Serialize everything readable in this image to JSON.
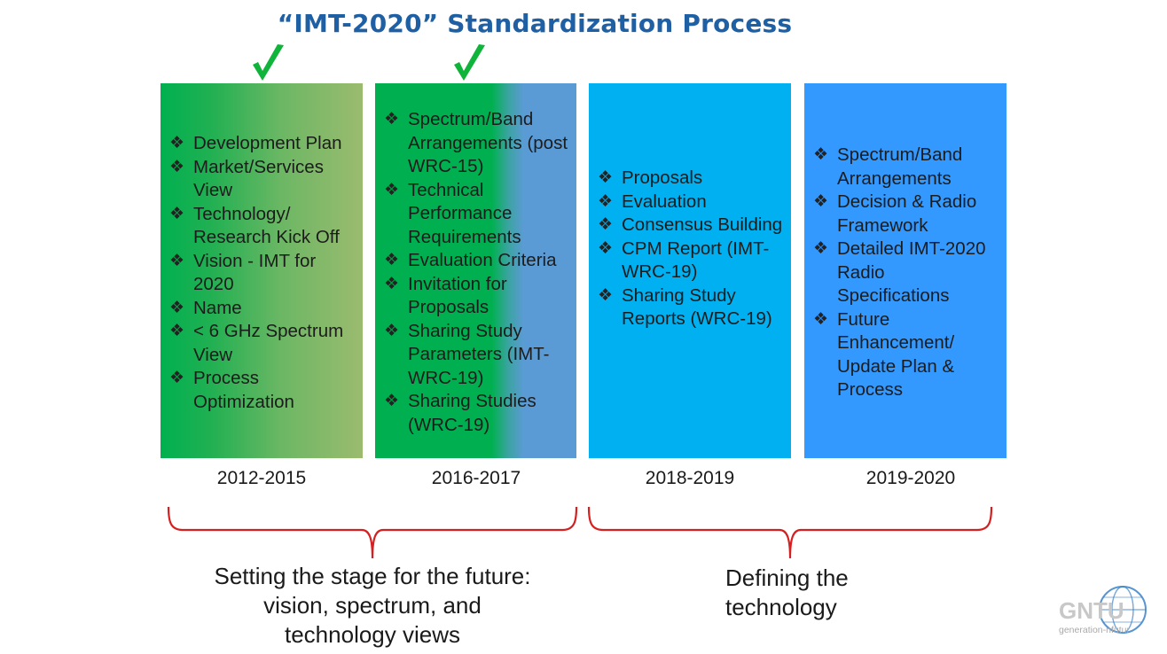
{
  "title": "“IMT-2020” Standardization Process",
  "colors": {
    "title": "#1f5fa3",
    "check": "#10b43a",
    "brace": "#d42020",
    "green": "#00b050",
    "olive": "#9bbb6f",
    "steel_blue": "#5b9bd5",
    "sky_blue": "#00b0f0",
    "blue": "#3399ff"
  },
  "bullet_glyph": "❖",
  "phases": [
    {
      "period": "2012-2015",
      "checked": true,
      "items": [
        "Development Plan",
        "Market/Services View",
        "Technology/ Research Kick Off",
        "Vision - IMT for 2020",
        "Name",
        "< 6 GHz Spectrum View",
        "Process Optimization"
      ]
    },
    {
      "period": "2016-2017",
      "checked": true,
      "items": [
        "Spectrum/Band Arrangements (post WRC-15)",
        "Technical Performance Requirements",
        "Evaluation Criteria",
        "Invitation for Proposals",
        "Sharing Study Parameters (IMT-WRC-19)",
        "Sharing Studies (WRC-19)"
      ]
    },
    {
      "period": "2018-2019",
      "checked": false,
      "items": [
        "Proposals",
        "Evaluation",
        "Consensus Building",
        "CPM Report (IMT-WRC-19)",
        "Sharing Study Reports (WRC-19)"
      ]
    },
    {
      "period": "2019-2020",
      "checked": false,
      "items": [
        "Spectrum/Band Arrangements",
        "Decision & Radio Framework",
        "Detailed IMT-2020 Radio Specifications",
        "Future Enhancement/ Update Plan & Process"
      ]
    }
  ],
  "groups": [
    {
      "caption_lines": [
        "Setting the stage for the future:",
        "vision, spectrum, and",
        "technology views"
      ]
    },
    {
      "caption_lines": [
        "Defining the",
        "technology"
      ]
    }
  ],
  "logo": {
    "wordmark": "GNTU",
    "tagline": "generation-nfutur"
  }
}
